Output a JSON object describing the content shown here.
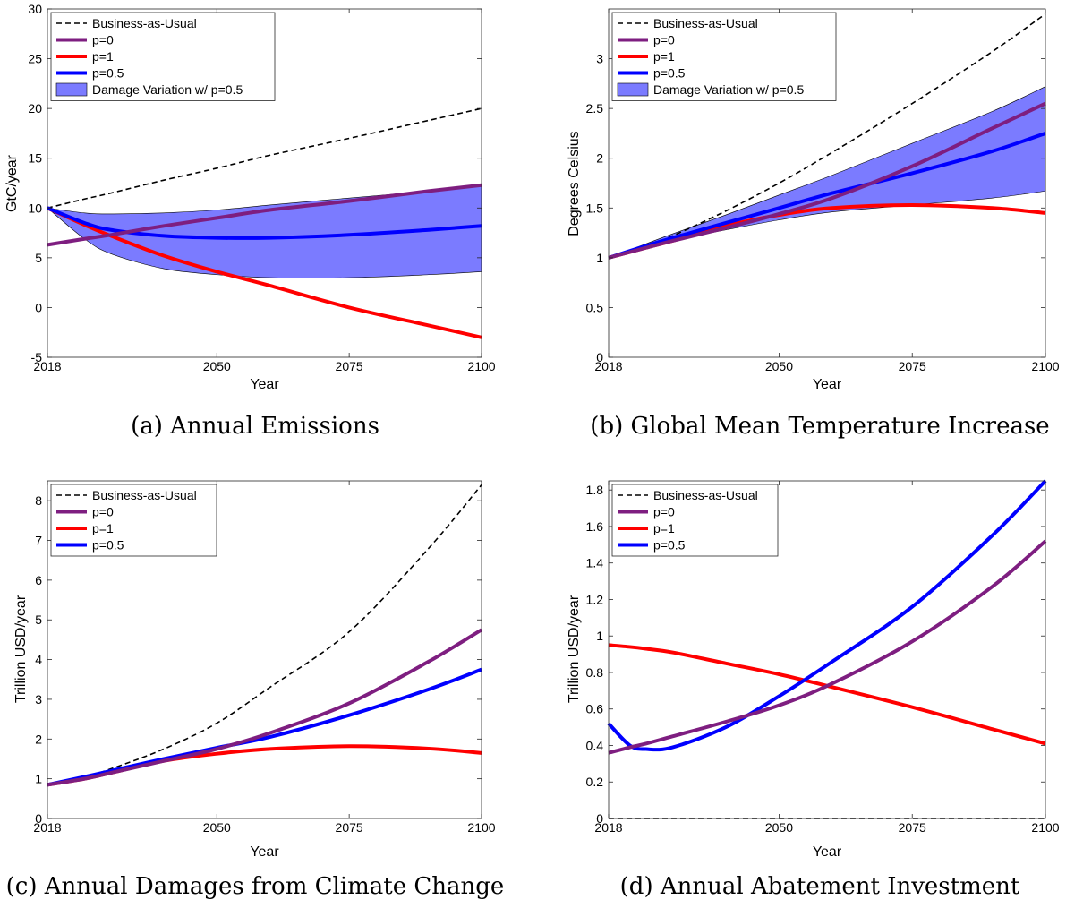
{
  "chart_data": [
    {
      "type": "line",
      "caption": "(a) Annual Emissions",
      "xlabel": "Year",
      "ylabel": "GtC/year",
      "xlim": [
        2018,
        2100
      ],
      "ylim": [
        -5,
        30
      ],
      "xticks": [
        2018,
        2050,
        2075,
        2100
      ],
      "yticks": [
        -5,
        0,
        5,
        10,
        15,
        20,
        25,
        30
      ],
      "legend_position": "top-left",
      "x": [
        2018,
        2025,
        2030,
        2040,
        2050,
        2060,
        2075,
        2090,
        2100
      ],
      "series": [
        {
          "name": "Business-as-Usual",
          "style": "dashed",
          "color": "#000000",
          "values": [
            10.0,
            10.9,
            11.5,
            12.8,
            14.0,
            15.3,
            17.0,
            18.8,
            20.0
          ]
        },
        {
          "name": "p=0",
          "style": "solid",
          "color": "#7E1E80",
          "values": [
            6.3,
            6.9,
            7.3,
            8.2,
            9.0,
            9.8,
            10.7,
            11.7,
            12.3
          ]
        },
        {
          "name": "p=1",
          "style": "solid",
          "color": "#FF0000",
          "values": [
            10.0,
            8.3,
            7.2,
            5.2,
            3.6,
            2.2,
            0.0,
            -1.8,
            -3.0
          ]
        },
        {
          "name": "p=0.5",
          "style": "solid",
          "color": "#0000FF",
          "values": [
            10.0,
            8.5,
            7.8,
            7.2,
            7.0,
            7.0,
            7.3,
            7.8,
            8.2
          ]
        }
      ],
      "band": {
        "name": "Damage Variation w/ p=0.5",
        "color": "#7B7BFF",
        "upper": [
          10.0,
          9.5,
          9.4,
          9.5,
          9.8,
          10.3,
          11.0,
          11.7,
          12.2
        ],
        "lower": [
          10.0,
          6.9,
          5.4,
          3.9,
          3.3,
          3.0,
          3.0,
          3.3,
          3.6
        ]
      }
    },
    {
      "type": "line",
      "caption": "(b) Global Mean Temperature Increase",
      "xlabel": "Year",
      "ylabel": "Degrees Celsius",
      "xlim": [
        2018,
        2100
      ],
      "ylim": [
        0,
        3.5
      ],
      "xticks": [
        2018,
        2050,
        2075,
        2100
      ],
      "yticks": [
        0,
        0.5,
        1,
        1.5,
        2,
        2.5,
        3
      ],
      "legend_position": "top-left",
      "x": [
        2018,
        2025,
        2030,
        2040,
        2050,
        2060,
        2075,
        2090,
        2100
      ],
      "series": [
        {
          "name": "Business-as-Usual",
          "style": "dashed",
          "color": "#000000",
          "values": [
            1.0,
            1.12,
            1.22,
            1.47,
            1.75,
            2.06,
            2.55,
            3.07,
            3.45
          ]
        },
        {
          "name": "p=0",
          "style": "solid",
          "color": "#7E1E80",
          "values": [
            1.0,
            1.1,
            1.17,
            1.3,
            1.44,
            1.6,
            1.92,
            2.3,
            2.55
          ]
        },
        {
          "name": "p=1",
          "style": "solid",
          "color": "#FF0000",
          "values": [
            1.0,
            1.1,
            1.17,
            1.32,
            1.43,
            1.5,
            1.53,
            1.5,
            1.45
          ]
        },
        {
          "name": "p=0.5",
          "style": "solid",
          "color": "#0000FF",
          "values": [
            1.0,
            1.12,
            1.2,
            1.35,
            1.5,
            1.65,
            1.85,
            2.07,
            2.25
          ]
        }
      ],
      "band": {
        "name": "Damage Variation w/ p=0.5",
        "color": "#7B7BFF",
        "upper": [
          1.0,
          1.14,
          1.24,
          1.43,
          1.63,
          1.83,
          2.15,
          2.47,
          2.72
        ],
        "lower": [
          1.0,
          1.1,
          1.17,
          1.28,
          1.38,
          1.46,
          1.53,
          1.6,
          1.67
        ]
      }
    },
    {
      "type": "line",
      "caption": "(c) Annual Damages from Climate Change",
      "xlabel": "Year",
      "ylabel": "Trillion USD/year",
      "xlim": [
        2018,
        2100
      ],
      "ylim": [
        0,
        8.5
      ],
      "xticks": [
        2018,
        2050,
        2075,
        2100
      ],
      "yticks": [
        0,
        1,
        2,
        3,
        4,
        5,
        6,
        7,
        8
      ],
      "legend_position": "top-left",
      "x": [
        2018,
        2025,
        2030,
        2040,
        2050,
        2060,
        2075,
        2090,
        2100
      ],
      "series": [
        {
          "name": "Business-as-Usual",
          "style": "dashed",
          "color": "#000000",
          "values": [
            0.85,
            1.05,
            1.25,
            1.75,
            2.4,
            3.3,
            4.7,
            6.8,
            8.4
          ]
        },
        {
          "name": "p=0",
          "style": "solid",
          "color": "#7E1E80",
          "values": [
            0.85,
            1.0,
            1.15,
            1.45,
            1.75,
            2.15,
            2.9,
            3.95,
            4.75
          ]
        },
        {
          "name": "p=1",
          "style": "solid",
          "color": "#FF0000",
          "values": [
            0.85,
            1.0,
            1.15,
            1.45,
            1.63,
            1.75,
            1.82,
            1.76,
            1.65
          ]
        },
        {
          "name": "p=0.5",
          "style": "solid",
          "color": "#0000FF",
          "values": [
            0.85,
            1.05,
            1.2,
            1.5,
            1.78,
            2.05,
            2.6,
            3.25,
            3.75
          ]
        }
      ]
    },
    {
      "type": "line",
      "caption": "(d) Annual Abatement Investment",
      "xlabel": "Year",
      "ylabel": "Trillion USD/year",
      "xlim": [
        2018,
        2100
      ],
      "ylim": [
        0,
        1.85
      ],
      "xticks": [
        2018,
        2050,
        2075,
        2100
      ],
      "yticks": [
        0,
        0.2,
        0.4,
        0.6,
        0.8,
        1,
        1.2,
        1.4,
        1.6,
        1.8
      ],
      "legend_position": "top-left",
      "x": [
        2018,
        2022,
        2025,
        2030,
        2040,
        2050,
        2060,
        2075,
        2090,
        2100
      ],
      "series": [
        {
          "name": "Business-as-Usual",
          "style": "dashed",
          "color": "#000000",
          "values": [
            0,
            0,
            0,
            0,
            0,
            0,
            0,
            0,
            0,
            0
          ]
        },
        {
          "name": "p=0",
          "style": "solid",
          "color": "#7E1E80",
          "values": [
            0.36,
            0.39,
            0.41,
            0.45,
            0.53,
            0.62,
            0.74,
            0.97,
            1.27,
            1.52
          ]
        },
        {
          "name": "p=1",
          "style": "solid",
          "color": "#FF0000",
          "values": [
            0.95,
            0.94,
            0.93,
            0.91,
            0.85,
            0.79,
            0.72,
            0.61,
            0.49,
            0.41
          ]
        },
        {
          "name": "p=0.5",
          "style": "solid",
          "color": "#0000FF",
          "values": [
            0.52,
            0.4,
            0.38,
            0.39,
            0.5,
            0.67,
            0.86,
            1.16,
            1.55,
            1.85
          ]
        }
      ]
    }
  ]
}
